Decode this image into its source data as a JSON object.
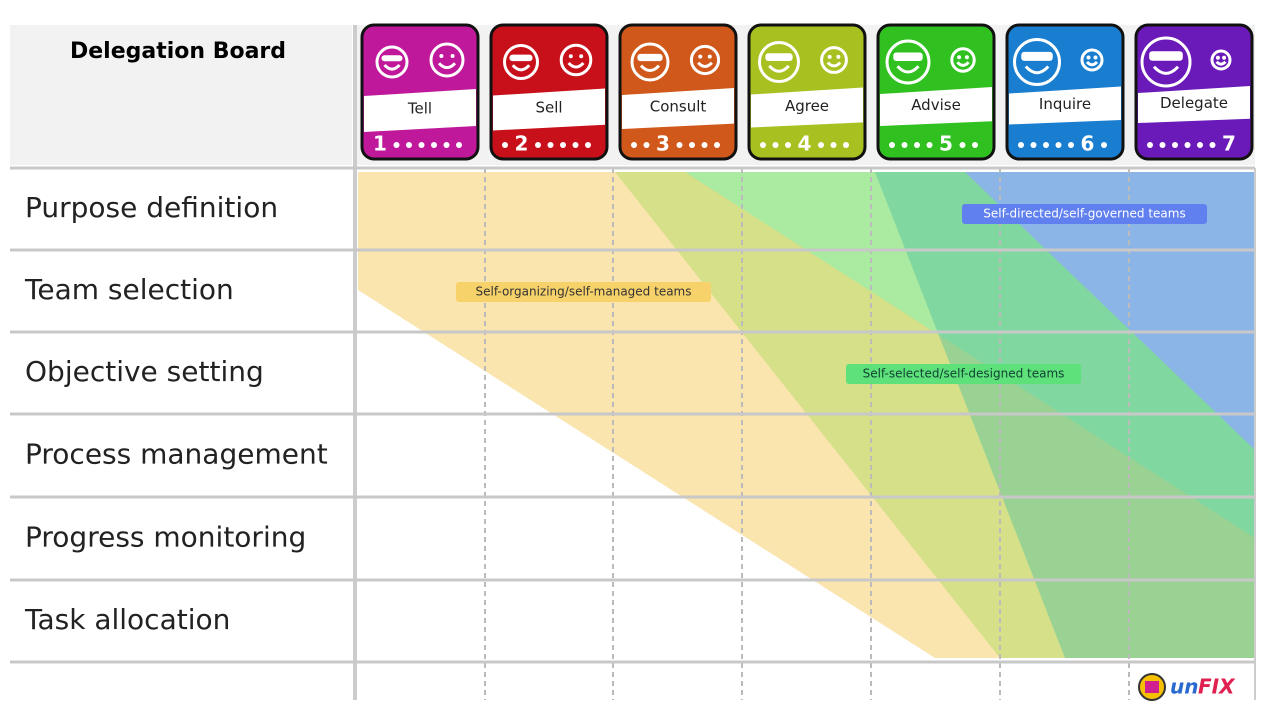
{
  "header": {
    "title": "Delegation Board"
  },
  "levels": [
    {
      "label": "Tell",
      "number": "1"
    },
    {
      "label": "Sell",
      "number": "2"
    },
    {
      "label": "Consult",
      "number": "3"
    },
    {
      "label": "Agree",
      "number": "4"
    },
    {
      "label": "Advise",
      "number": "5"
    },
    {
      "label": "Inquire",
      "number": "6"
    },
    {
      "label": "Delegate",
      "number": "7"
    }
  ],
  "rows": [
    "Purpose definition",
    "Team selection",
    "Objective setting",
    "Process management",
    "Progress monitoring",
    "Task allocation"
  ],
  "bands": [
    {
      "label": "Self-organizing/self-managed teams"
    },
    {
      "label": "Self-selected/self-designed teams"
    },
    {
      "label": "Self-directed/self-governed teams"
    }
  ],
  "logo": {
    "prefix": "un",
    "suffix": "FIX"
  }
}
